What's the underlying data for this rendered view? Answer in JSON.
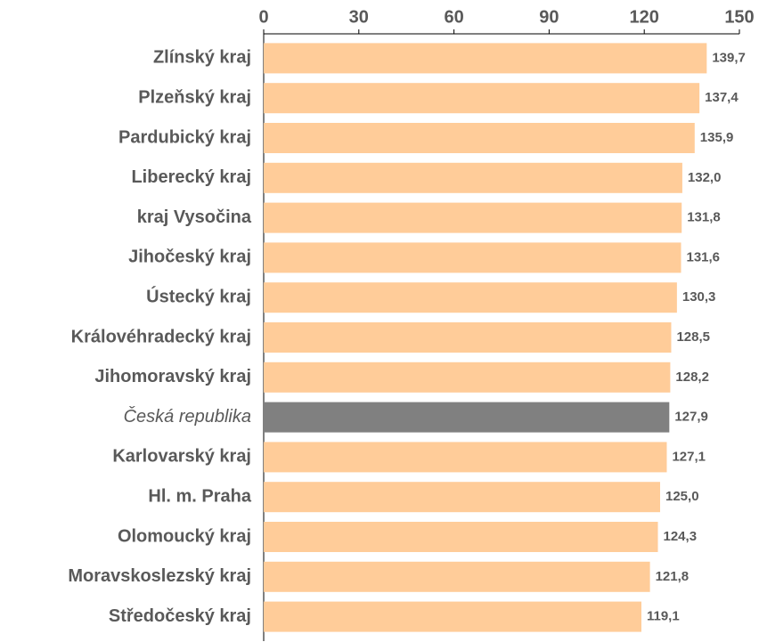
{
  "chart_data": {
    "type": "hbar",
    "categories": [
      "Zlínský kraj",
      "Plzeňský kraj",
      "Pardubický kraj",
      "Liberecký kraj",
      "kraj Vysočina",
      "Jihočeský kraj",
      "Ústecký kraj",
      "Královéhradecký kraj",
      "Jihomoravský kraj",
      "Česká republika",
      "Karlovarský kraj",
      "Hl. m. Praha",
      "Olomoucký kraj",
      "Moravskoslezský kraj",
      "Středočeský kraj"
    ],
    "values": [
      139.7,
      137.4,
      135.9,
      132.0,
      131.8,
      131.6,
      130.3,
      128.5,
      128.2,
      127.9,
      127.1,
      125.0,
      124.3,
      121.8,
      119.1
    ],
    "value_labels": [
      "139,7",
      "137,4",
      "135,9",
      "132,0",
      "131,8",
      "131,6",
      "130,3",
      "128,5",
      "128,2",
      "127,9",
      "127,1",
      "125,0",
      "124,3",
      "121,8",
      "119,1"
    ],
    "colors": [
      "#ffcc99",
      "#ffcc99",
      "#ffcc99",
      "#ffcc99",
      "#ffcc99",
      "#ffcc99",
      "#ffcc99",
      "#ffcc99",
      "#ffcc99",
      "#808080",
      "#ffcc99",
      "#ffcc99",
      "#ffcc99",
      "#ffcc99",
      "#ffcc99"
    ],
    "xlim": [
      0,
      150
    ],
    "xticks": [
      0,
      30,
      60,
      90,
      120,
      150
    ]
  }
}
